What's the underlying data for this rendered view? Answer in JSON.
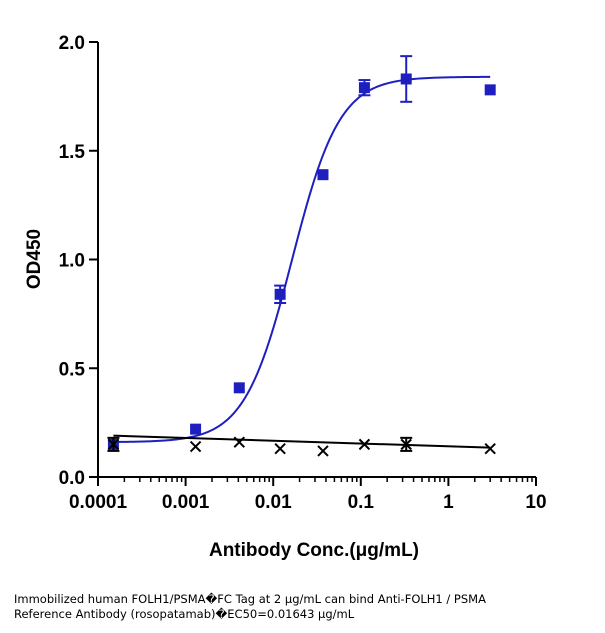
{
  "chart_data": {
    "type": "scatter",
    "xlabel": "Antibody Conc.(μg/mL)",
    "ylabel": "OD450",
    "x_scale": "log",
    "xlim": [
      0.0001,
      10
    ],
    "ylim": [
      0,
      2.0
    ],
    "x_ticks": [
      "0.0001",
      "0.001",
      "0.01",
      "0.1",
      "1",
      "10"
    ],
    "y_ticks": [
      "0.0",
      "0.5",
      "1.0",
      "1.5",
      "2.0"
    ],
    "grid": false,
    "series": [
      {
        "marker": "square",
        "color": "#1f1fbf",
        "x": [
          0.00015,
          0.0013,
          0.0041,
          0.012,
          0.037,
          0.11,
          0.33,
          3.0
        ],
        "y": [
          0.15,
          0.22,
          0.41,
          0.84,
          1.39,
          1.79,
          1.83,
          1.78
        ],
        "error": [
          0.0,
          0.0,
          0.0,
          0.04,
          0.0,
          0.035,
          0.105,
          0.0
        ],
        "fit_curve": {
          "bottom": 0.16,
          "top": 1.84,
          "ec50": 0.01643,
          "hill": 1.6
        }
      },
      {
        "marker": "x",
        "color": "#000000",
        "x": [
          0.00015,
          0.0013,
          0.0041,
          0.012,
          0.037,
          0.11,
          0.33,
          3.0
        ],
        "y": [
          0.15,
          0.14,
          0.16,
          0.13,
          0.12,
          0.15,
          0.15,
          0.13
        ],
        "error": [
          0.03,
          0.0,
          0.0,
          0.0,
          0.0,
          0.0,
          0.03,
          0.0
        ],
        "fit_line": {
          "y_start": 0.19,
          "y_end": 0.135
        }
      }
    ]
  },
  "caption": {
    "line1": "Immobilized human FOLH1/PSMA�FC Tag at 2  μg/mL can bind  Anti-FOLH1 / PSMA",
    "line2": "Reference Antibody (rosopatamab)�EC50=0.01643 μg/mL"
  }
}
